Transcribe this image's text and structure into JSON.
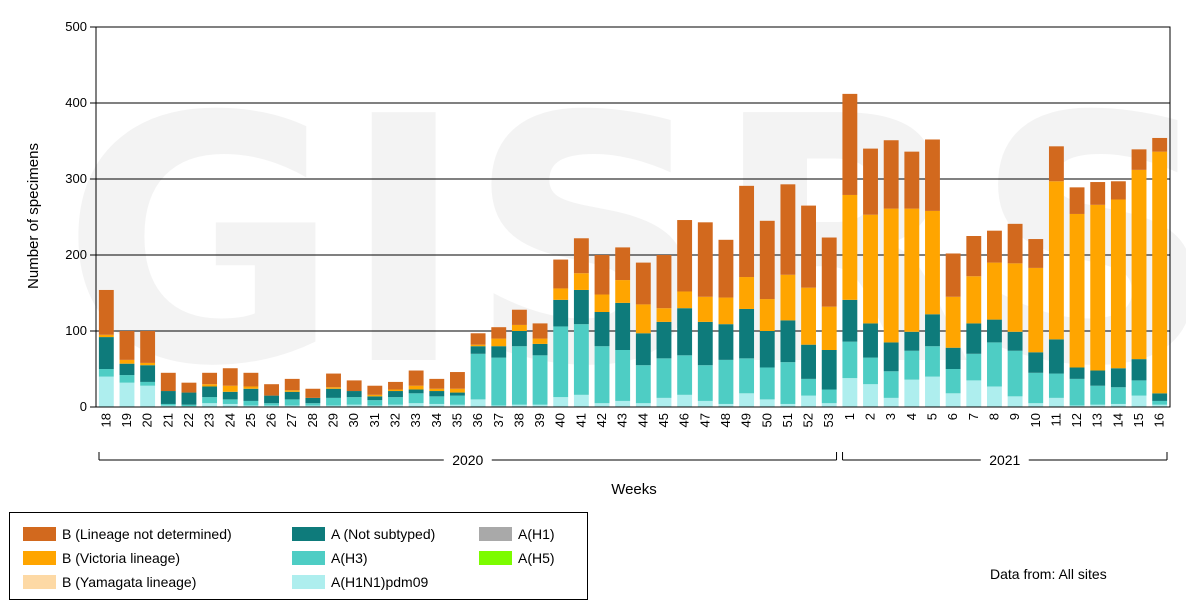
{
  "chart_data": {
    "type": "bar",
    "stacked": true,
    "title": "",
    "watermark": "GISRS",
    "xlabel": "Weeks",
    "ylabel": "Number of specimens",
    "ylim": [
      0,
      500
    ],
    "yticks": [
      0,
      100,
      200,
      300,
      400,
      500
    ],
    "grid": true,
    "legend_position": "bottom",
    "categories": [
      "18",
      "19",
      "20",
      "21",
      "22",
      "23",
      "24",
      "25",
      "26",
      "27",
      "28",
      "29",
      "30",
      "31",
      "32",
      "33",
      "34",
      "35",
      "36",
      "37",
      "38",
      "39",
      "40",
      "41",
      "42",
      "43",
      "44",
      "45",
      "46",
      "47",
      "48",
      "49",
      "50",
      "51",
      "52",
      "53",
      "1",
      "2",
      "3",
      "4",
      "5",
      "6",
      "7",
      "8",
      "9",
      "10",
      "11",
      "12",
      "13",
      "14",
      "15",
      "16"
    ],
    "year_groups": [
      {
        "label": "2020",
        "start": 0,
        "end": 35
      },
      {
        "label": "2021",
        "start": 36,
        "end": 51
      }
    ],
    "series": [
      {
        "name": "A(H1N1)pdm09",
        "color": "#aeeeee",
        "values": [
          40,
          32,
          28,
          2,
          1,
          5,
          4,
          2,
          2,
          2,
          2,
          2,
          3,
          2,
          3,
          5,
          4,
          3,
          10,
          2,
          3,
          3,
          13,
          16,
          5,
          8,
          5,
          12,
          16,
          8,
          4,
          18,
          10,
          4,
          15,
          5,
          38,
          30,
          12,
          36,
          40,
          18,
          35,
          27,
          14,
          5,
          12,
          2,
          3,
          4,
          15,
          3
        ]
      },
      {
        "name": "A(H3)",
        "color": "#4ecdc4",
        "values": [
          10,
          10,
          5,
          2,
          2,
          8,
          6,
          6,
          3,
          8,
          3,
          10,
          10,
          7,
          10,
          13,
          10,
          12,
          60,
          63,
          77,
          65,
          93,
          93,
          75,
          67,
          50,
          52,
          52,
          47,
          58,
          46,
          42,
          55,
          22,
          18,
          48,
          35,
          35,
          38,
          40,
          32,
          35,
          58,
          60,
          40,
          32,
          35,
          25,
          22,
          20,
          5
        ]
      },
      {
        "name": "A(Not subtyped)",
        "color": "#0e7b7b",
        "values": [
          42,
          15,
          22,
          17,
          16,
          14,
          10,
          16,
          10,
          10,
          7,
          12,
          8,
          5,
          8,
          5,
          7,
          4,
          10,
          15,
          20,
          15,
          35,
          45,
          45,
          62,
          42,
          48,
          62,
          57,
          47,
          65,
          48,
          55,
          45,
          52,
          55,
          45,
          38,
          25,
          42,
          28,
          40,
          30,
          25,
          27,
          45,
          15,
          20,
          25,
          28,
          10
        ]
      },
      {
        "name": "A(H1)",
        "color": "#a9a9a9",
        "values": [
          0,
          0,
          0,
          0,
          0,
          0,
          0,
          0,
          0,
          0,
          0,
          0,
          0,
          0,
          0,
          0,
          0,
          0,
          0,
          0,
          0,
          0,
          0,
          0,
          0,
          0,
          0,
          0,
          0,
          0,
          0,
          0,
          0,
          0,
          0,
          0,
          0,
          0,
          0,
          0,
          0,
          0,
          0,
          0,
          0,
          0,
          0,
          0,
          0,
          0,
          0,
          0
        ]
      },
      {
        "name": "A(H5)",
        "color": "#7cfc00",
        "values": [
          0,
          0,
          0,
          0,
          0,
          0,
          0,
          0,
          0,
          0,
          0,
          0,
          0,
          0,
          0,
          0,
          0,
          0,
          0,
          0,
          0,
          0,
          0,
          0,
          0,
          0,
          0,
          0,
          0,
          0,
          0,
          0,
          0,
          0,
          0,
          0,
          0,
          0,
          0,
          0,
          0,
          0,
          0,
          0,
          0,
          0,
          0,
          0,
          0,
          0,
          0,
          0
        ]
      },
      {
        "name": "B (Yamagata lineage)",
        "color": "#fdd9a5",
        "values": [
          0,
          0,
          0,
          0,
          0,
          0,
          0,
          0,
          0,
          0,
          0,
          0,
          0,
          0,
          0,
          0,
          0,
          0,
          0,
          0,
          0,
          0,
          0,
          0,
          0,
          0,
          0,
          0,
          0,
          0,
          0,
          0,
          0,
          0,
          0,
          0,
          0,
          0,
          0,
          0,
          0,
          0,
          0,
          0,
          0,
          0,
          0,
          0,
          0,
          0,
          0,
          0
        ]
      },
      {
        "name": "B (Victoria lineage)",
        "color": "#ffa500",
        "values": [
          3,
          5,
          3,
          0,
          0,
          3,
          8,
          3,
          0,
          2,
          0,
          2,
          0,
          2,
          2,
          5,
          3,
          5,
          2,
          10,
          8,
          7,
          15,
          22,
          23,
          30,
          38,
          18,
          22,
          33,
          35,
          42,
          42,
          60,
          75,
          57,
          138,
          143,
          176,
          162,
          136,
          67,
          62,
          75,
          90,
          111,
          208,
          202,
          218,
          222,
          249,
          318
        ]
      },
      {
        "name": "B (Lineage not determined)",
        "color": "#d2691e",
        "values": [
          59,
          38,
          42,
          24,
          13,
          15,
          23,
          18,
          15,
          15,
          12,
          18,
          14,
          12,
          10,
          20,
          13,
          22,
          15,
          15,
          20,
          20,
          38,
          46,
          52,
          43,
          55,
          70,
          94,
          98,
          76,
          120,
          103,
          119,
          108,
          91,
          133,
          87,
          90,
          75,
          94,
          57,
          53,
          42,
          52,
          38,
          46,
          35,
          30,
          24,
          27,
          18
        ]
      }
    ]
  },
  "legend_items": [
    {
      "label": "B (Lineage not determined)",
      "color": "#d2691e"
    },
    {
      "label": "B (Victoria lineage)",
      "color": "#ffa500"
    },
    {
      "label": "B (Yamagata lineage)",
      "color": "#fdd9a5"
    },
    {
      "label": "A (Not subtyped)",
      "color": "#0e7b7b"
    },
    {
      "label": "A(H3)",
      "color": "#4ecdc4"
    },
    {
      "label": "A(H1N1)pdm09",
      "color": "#aeeeee"
    },
    {
      "label": "A(H1)",
      "color": "#a9a9a9"
    },
    {
      "label": "A(H5)",
      "color": "#7cfc00"
    }
  ],
  "source_note": "Data from: All sites"
}
